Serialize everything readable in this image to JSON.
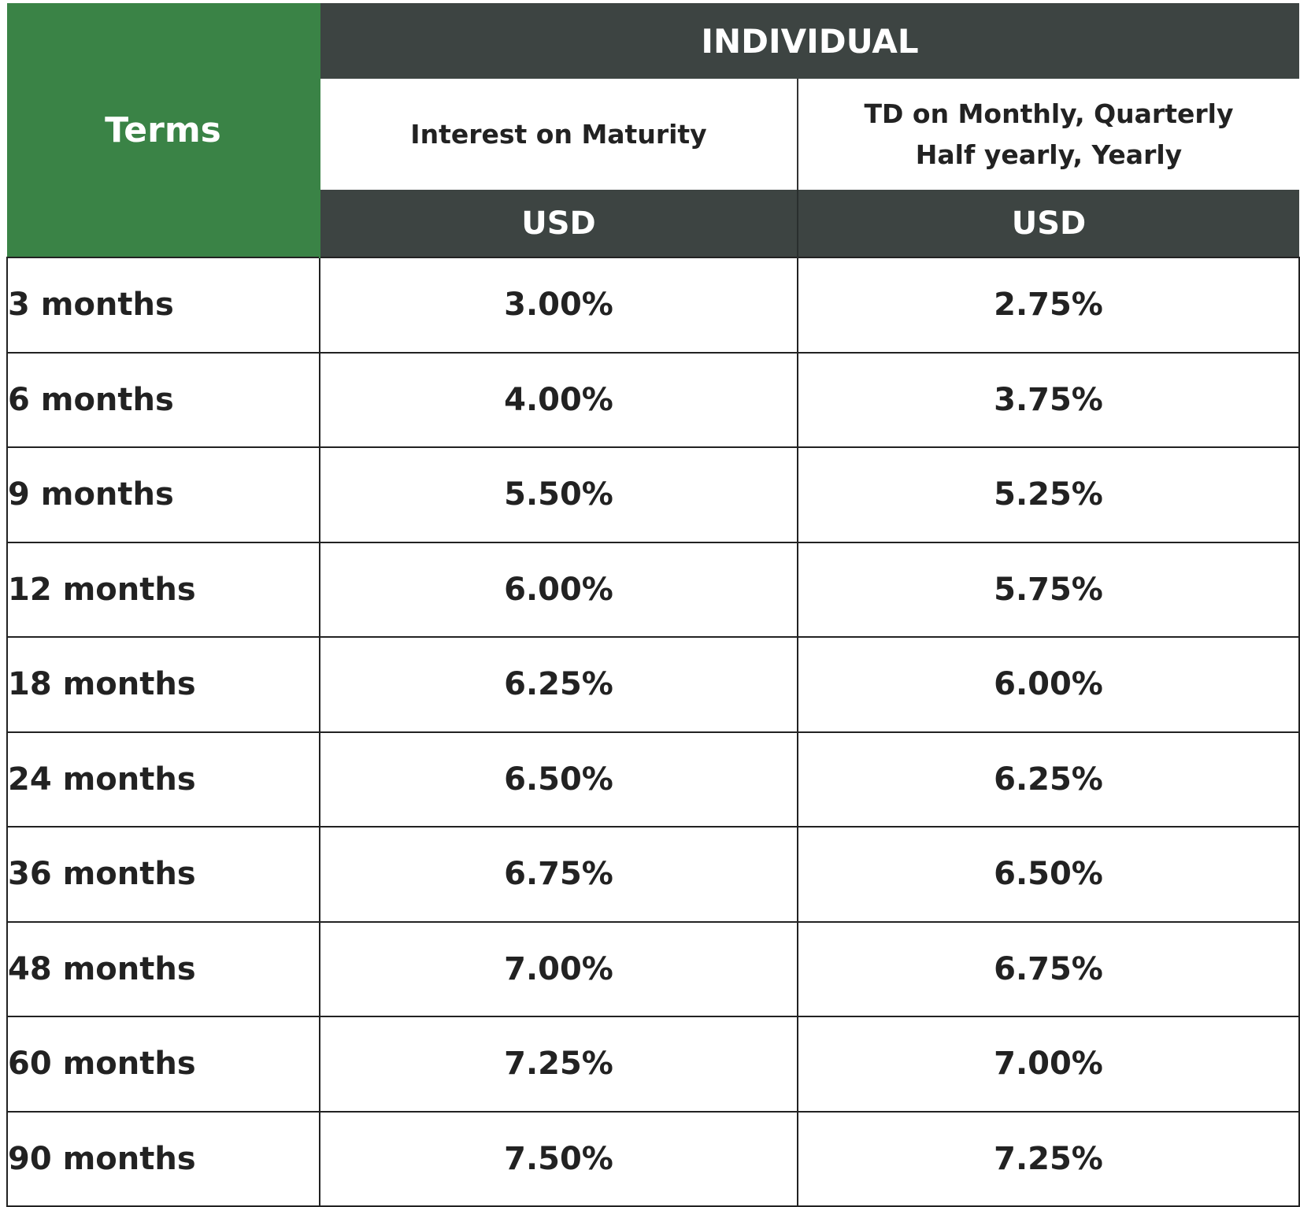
{
  "header": {
    "terms_label": "Terms",
    "group_label": "INDIVIDUAL",
    "columns": [
      {
        "title": "Interest on Maturity",
        "currency": "USD"
      },
      {
        "title_line1": "TD on Monthly, Quarterly",
        "title_line2": "Half yearly, Yearly",
        "currency": "USD"
      }
    ]
  },
  "rows": [
    {
      "term": "3 months",
      "maturity": "3.00%",
      "periodic": "2.75%"
    },
    {
      "term": "6 months",
      "maturity": "4.00%",
      "periodic": "3.75%"
    },
    {
      "term": "9 months",
      "maturity": "5.50%",
      "periodic": "5.25%"
    },
    {
      "term": "12 months",
      "maturity": "6.00%",
      "periodic": "5.75%"
    },
    {
      "term": "18 months",
      "maturity": "6.25%",
      "periodic": "6.00%"
    },
    {
      "term": "24 months",
      "maturity": "6.50%",
      "periodic": "6.25%"
    },
    {
      "term": "36 months",
      "maturity": "6.75%",
      "periodic": "6.50%"
    },
    {
      "term": "48 months",
      "maturity": "7.00%",
      "periodic": "6.75%"
    },
    {
      "term": "60 months",
      "maturity": "7.25%",
      "periodic": "7.00%"
    },
    {
      "term": "90 months",
      "maturity": "7.50%",
      "periodic": "7.25%"
    }
  ],
  "colors": {
    "terms_header_bg": "#3a8346",
    "dark_header_bg": "#3d4442",
    "text": "#222222",
    "header_text": "#ffffff"
  }
}
